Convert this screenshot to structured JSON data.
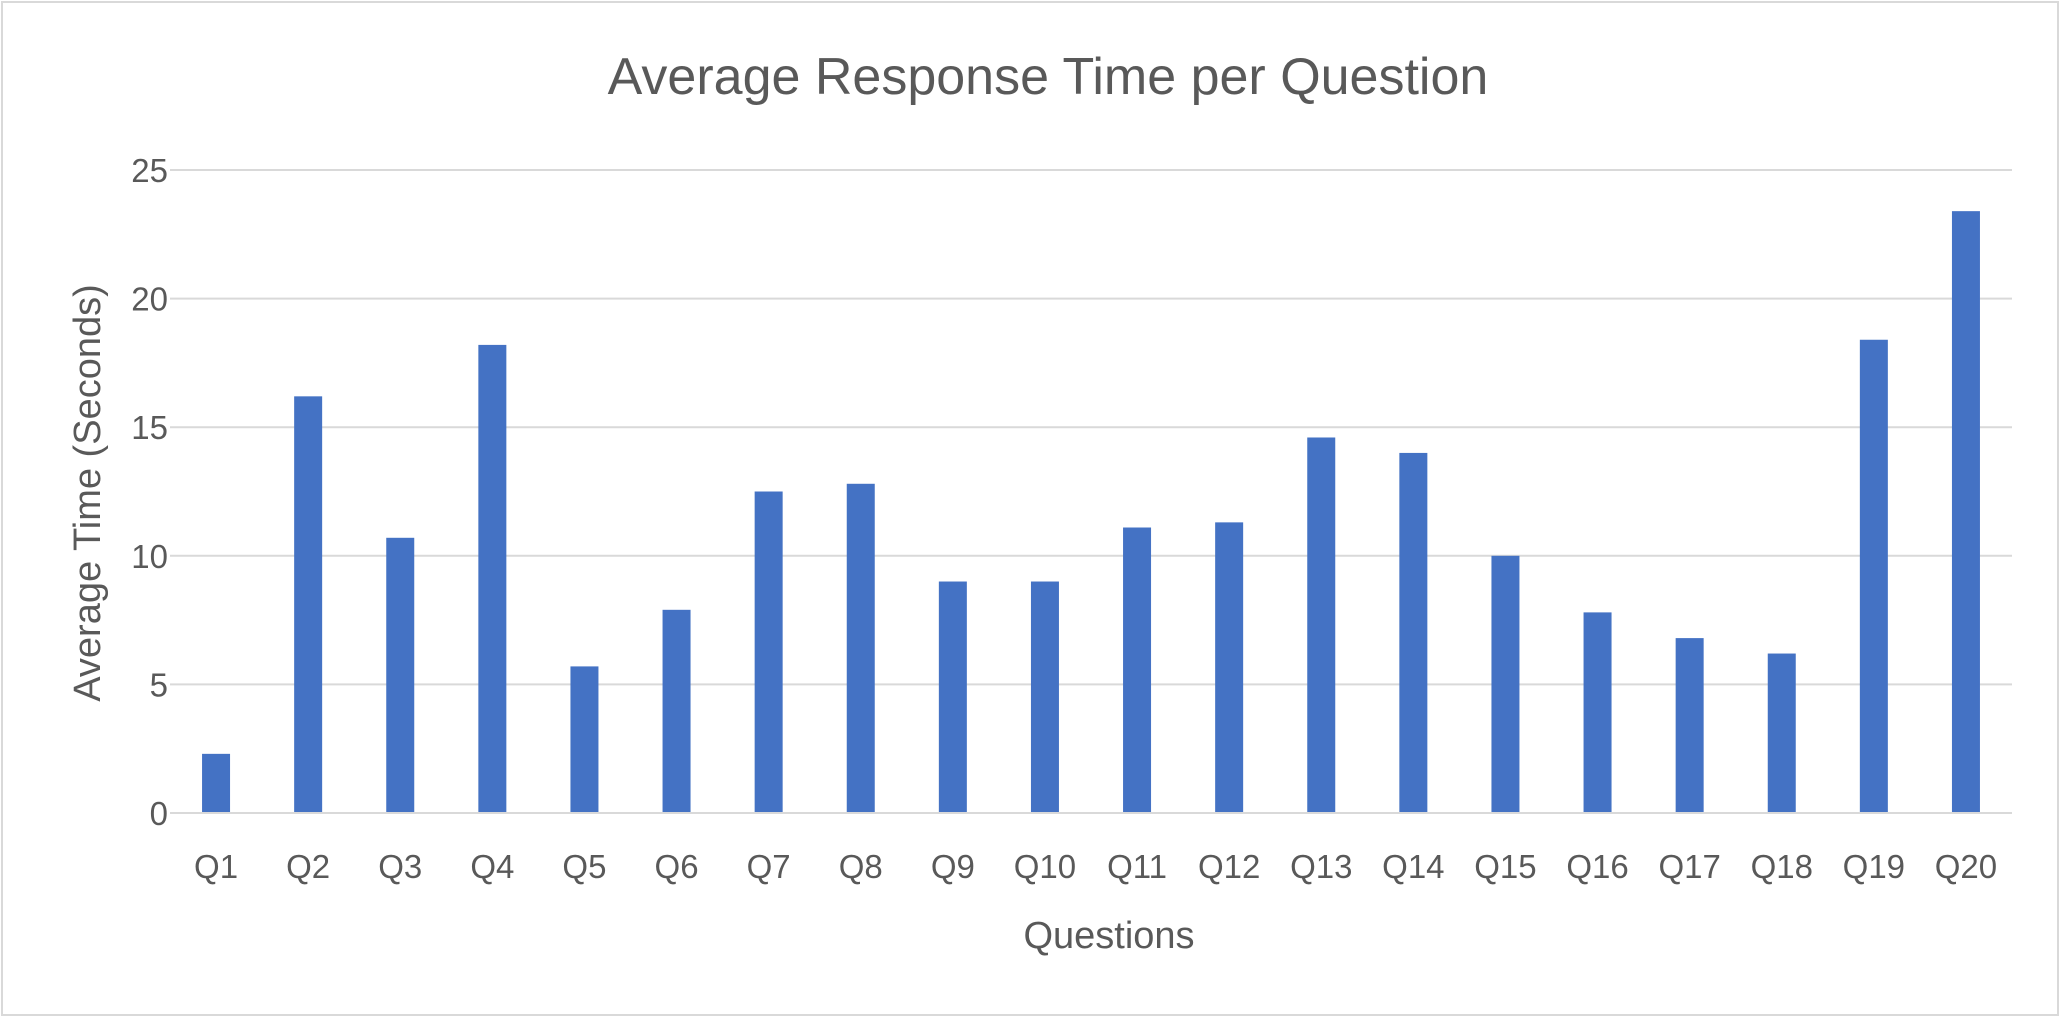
{
  "chart_data": {
    "type": "bar",
    "title": "Average Response Time per Question",
    "xlabel": "Questions",
    "ylabel": "Average Time (Seconds)",
    "ylim": [
      0,
      25
    ],
    "yticks": [
      0,
      5,
      10,
      15,
      20,
      25
    ],
    "grid": true,
    "legend": "none",
    "bar_color": "#4472c4",
    "categories": [
      "Q1",
      "Q2",
      "Q3",
      "Q4",
      "Q5",
      "Q6",
      "Q7",
      "Q8",
      "Q9",
      "Q10",
      "Q11",
      "Q12",
      "Q13",
      "Q14",
      "Q15",
      "Q16",
      "Q17",
      "Q18",
      "Q19",
      "Q20"
    ],
    "values": [
      2.3,
      16.2,
      10.7,
      18.2,
      5.7,
      7.9,
      12.5,
      12.8,
      9.0,
      9.0,
      11.1,
      11.3,
      14.6,
      14.0,
      10.0,
      7.8,
      6.8,
      6.2,
      18.4,
      23.4
    ]
  }
}
